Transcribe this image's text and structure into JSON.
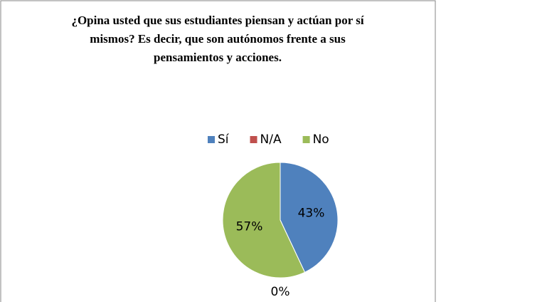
{
  "chart_data": {
    "type": "pie",
    "title": "¿Opina usted que sus estudiantes piensan y actúan por sí mismos? Es decir, que son autónomos frente a sus pensamientos y acciones.",
    "categories": [
      "Sí",
      "N/A",
      "No"
    ],
    "values": [
      43,
      0,
      57
    ],
    "value_labels": [
      "43%",
      "0%",
      "57%"
    ],
    "colors": [
      "#4f81bd",
      "#c0504d",
      "#9bbb59"
    ],
    "legend": "top"
  }
}
